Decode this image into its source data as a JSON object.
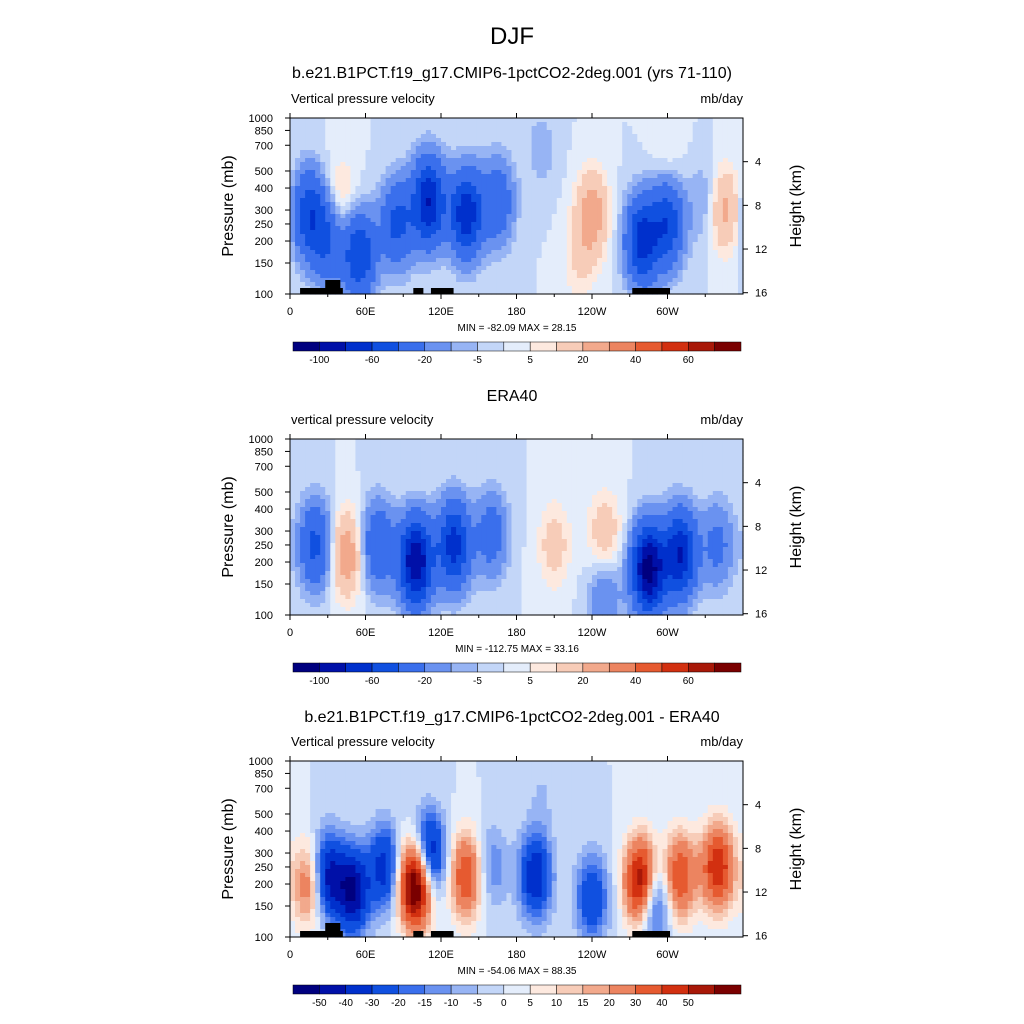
{
  "figure_title": "DJF",
  "colors": {
    "scale_a": [
      "#00007f",
      "#0010a8",
      "#0030cc",
      "#1050e0",
      "#3a6fec",
      "#6a92f0",
      "#97b4f4",
      "#c3d6f8",
      "#e4edfb",
      "#fde9df",
      "#f7ccb8",
      "#f2a98c",
      "#ec8460",
      "#e65a30",
      "#d23010",
      "#a81808",
      "#7a0000"
    ],
    "scale_b": [
      "#00007f",
      "#0010a8",
      "#0030cc",
      "#1050e0",
      "#3a6fec",
      "#6a92f0",
      "#97b4f4",
      "#c3d6f8",
      "#e4edfb",
      "#fde9df",
      "#f7ccb8",
      "#f2a98c",
      "#ec8460",
      "#e65a30",
      "#d23010",
      "#a81808",
      "#7a0000"
    ],
    "topography": "#000000"
  },
  "chart_data": [
    {
      "type": "heatmap",
      "title": "b.e21.B1PCT.f19_g17.CMIP6-1pctCO2-2deg.001 (yrs 71-110)",
      "left_string": "Vertical pressure velocity",
      "right_string": "mb/day",
      "ylabel": "Pressure (mb)",
      "y2label": "Height (km)",
      "xticks": [
        "0",
        "60E",
        "120E",
        "180",
        "120W",
        "60W"
      ],
      "yticks": [
        "100",
        "150",
        "200",
        "250",
        "300",
        "400",
        "500",
        "700",
        "850",
        "1000"
      ],
      "y2ticks": [
        "16",
        "12",
        "8",
        "4"
      ],
      "stats": "MIN = -82.09  MAX =  28.15",
      "colorbar_labels": [
        "-100",
        "-60",
        "-20",
        "-5",
        "5",
        "20",
        "40",
        "60"
      ],
      "colorbar_colors": "scale_a",
      "xlim": [
        0,
        360
      ],
      "ylim": [
        1000,
        100
      ],
      "min": -82.09,
      "max": 28.15,
      "features": [
        {
          "lon": 15,
          "p": 350,
          "v": -55
        },
        {
          "lon": 30,
          "p": 500,
          "v": -40
        },
        {
          "lon": 40,
          "p": 300,
          "v": 15
        },
        {
          "lon": 55,
          "p": 600,
          "v": -60
        },
        {
          "lon": 85,
          "p": 400,
          "v": -45
        },
        {
          "lon": 110,
          "p": 300,
          "v": -80
        },
        {
          "lon": 140,
          "p": 350,
          "v": -75
        },
        {
          "lon": 165,
          "p": 300,
          "v": -35
        },
        {
          "lon": 240,
          "p": 350,
          "v": 28
        },
        {
          "lon": 230,
          "p": 650,
          "v": 10
        },
        {
          "lon": 200,
          "p": 150,
          "v": -8
        },
        {
          "lon": 280,
          "p": 500,
          "v": -70
        },
        {
          "lon": 300,
          "p": 400,
          "v": -55
        },
        {
          "lon": 330,
          "p": 300,
          "v": -12
        },
        {
          "lon": 345,
          "p": 330,
          "v": 25
        },
        {
          "lon": 300,
          "p": 150,
          "v": 6
        }
      ]
    },
    {
      "type": "heatmap",
      "title": "ERA40",
      "left_string": "vertical pressure velocity",
      "right_string": "mb/day",
      "ylabel": "Pressure (mb)",
      "y2label": "Height (km)",
      "xticks": [
        "0",
        "60E",
        "120E",
        "180",
        "120W",
        "60W"
      ],
      "yticks": [
        "100",
        "150",
        "200",
        "250",
        "300",
        "400",
        "500",
        "700",
        "850",
        "1000"
      ],
      "y2ticks": [
        "16",
        "12",
        "8",
        "4"
      ],
      "stats": "MIN = -112.75  MAX =  33.16",
      "colorbar_labels": [
        "-100",
        "-60",
        "-20",
        "-5",
        "5",
        "20",
        "40",
        "60"
      ],
      "colorbar_colors": "scale_a",
      "xlim": [
        0,
        360
      ],
      "ylim": [
        1000,
        100
      ],
      "min": -112.75,
      "max": 33.16,
      "features": [
        {
          "lon": 20,
          "p": 400,
          "v": -45
        },
        {
          "lon": 45,
          "p": 450,
          "v": 30
        },
        {
          "lon": 70,
          "p": 400,
          "v": -40
        },
        {
          "lon": 100,
          "p": 500,
          "v": -100
        },
        {
          "lon": 130,
          "p": 400,
          "v": -70
        },
        {
          "lon": 160,
          "p": 350,
          "v": -30
        },
        {
          "lon": 210,
          "p": 400,
          "v": 15
        },
        {
          "lon": 250,
          "p": 350,
          "v": 18
        },
        {
          "lon": 285,
          "p": 550,
          "v": -110
        },
        {
          "lon": 310,
          "p": 450,
          "v": -80
        },
        {
          "lon": 340,
          "p": 400,
          "v": -25
        },
        {
          "lon": 250,
          "p": 800,
          "v": -20
        }
      ]
    },
    {
      "type": "heatmap",
      "title": "b.e21.B1PCT.f19_g17.CMIP6-1pctCO2-2deg.001 - ERA40",
      "left_string": "Vertical pressure velocity",
      "right_string": "mb/day",
      "ylabel": "Pressure (mb)",
      "y2label": "Height (km)",
      "xticks": [
        "0",
        "60E",
        "120E",
        "180",
        "120W",
        "60W"
      ],
      "yticks": [
        "100",
        "150",
        "200",
        "250",
        "300",
        "400",
        "500",
        "700",
        "850",
        "1000"
      ],
      "y2ticks": [
        "16",
        "12",
        "8",
        "4"
      ],
      "stats": "MIN = -54.06  MAX =  88.35",
      "colorbar_labels": [
        "-50",
        "-40",
        "-30",
        "-20",
        "-15",
        "-10",
        "-5",
        "0",
        "5",
        "10",
        "15",
        "20",
        "30",
        "40",
        "50"
      ],
      "colorbar_colors": "scale_b",
      "xlim": [
        0,
        360
      ],
      "ylim": [
        1000,
        100
      ],
      "min": -54.06,
      "max": 88.35,
      "features": [
        {
          "lon": 15,
          "p": 500,
          "v": 30
        },
        {
          "lon": 30,
          "p": 450,
          "v": -45
        },
        {
          "lon": 50,
          "p": 550,
          "v": -50
        },
        {
          "lon": 75,
          "p": 400,
          "v": -35
        },
        {
          "lon": 100,
          "p": 500,
          "v": 85
        },
        {
          "lon": 110,
          "p": 350,
          "v": -50
        },
        {
          "lon": 140,
          "p": 450,
          "v": 40
        },
        {
          "lon": 160,
          "p": 400,
          "v": -15
        },
        {
          "lon": 195,
          "p": 450,
          "v": -40
        },
        {
          "lon": 240,
          "p": 600,
          "v": -30
        },
        {
          "lon": 280,
          "p": 500,
          "v": 80
        },
        {
          "lon": 287,
          "p": 600,
          "v": -50
        },
        {
          "lon": 310,
          "p": 450,
          "v": 40
        },
        {
          "lon": 340,
          "p": 400,
          "v": 50
        },
        {
          "lon": 200,
          "p": 150,
          "v": -5
        }
      ]
    }
  ]
}
